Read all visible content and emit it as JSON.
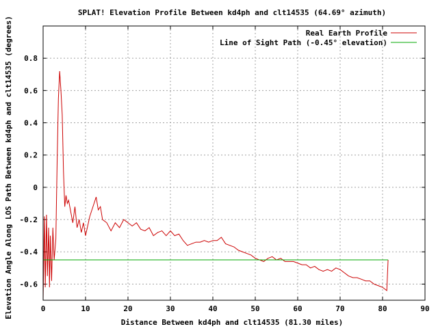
{
  "chart_data": {
    "type": "line",
    "title": "SPLAT! Elevation Profile Between kd4ph and clt14535 (64.69° azimuth)",
    "xlabel": "Distance Between kd4ph and clt14535 (81.30 miles)",
    "ylabel": "Elevation Angle Along LOS Path Between kd4ph and clt14535 (degrees)",
    "xlim": [
      0,
      90
    ],
    "ylim": [
      -0.7,
      1.0
    ],
    "x_ticks": [
      0,
      10,
      20,
      30,
      40,
      50,
      60,
      70,
      80,
      90
    ],
    "y_ticks": [
      -0.6,
      -0.4,
      -0.2,
      0,
      0.2,
      0.4,
      0.6,
      0.8
    ],
    "x_tick_labels": [
      "0",
      "10",
      "20",
      "30",
      "40",
      "50",
      "60",
      "70",
      "80",
      "90"
    ],
    "y_tick_labels": [
      "-0.6",
      "-0.4",
      "-0.2",
      "0",
      "0.2",
      "0.4",
      "0.6",
      "0.8"
    ],
    "grid": true,
    "legend_position": "top-right",
    "series": [
      {
        "name": "Real Earth Profile",
        "color": "#cc0000",
        "x": [
          0,
          0.3,
          0.5,
          0.8,
          1.0,
          1.3,
          1.5,
          1.7,
          2.0,
          2.3,
          2.6,
          3.0,
          3.3,
          3.6,
          3.9,
          4.2,
          4.5,
          4.8,
          5.1,
          5.4,
          5.7,
          6.0,
          6.5,
          7.0,
          7.5,
          8.0,
          8.5,
          9.0,
          9.5,
          10.0,
          11.0,
          12.0,
          12.5,
          13.0,
          13.5,
          14.0,
          15.0,
          16.0,
          17.0,
          18.0,
          19.0,
          20.0,
          21.0,
          22.0,
          23.0,
          24.0,
          25.0,
          26.0,
          27.0,
          28.0,
          29.0,
          30.0,
          31.0,
          32.0,
          33.0,
          34.0,
          35.0,
          36.0,
          37.0,
          38.0,
          39.0,
          40.0,
          41.0,
          42.0,
          43.0,
          44.0,
          45.0,
          46.0,
          47.0,
          48.0,
          49.0,
          50.0,
          51.0,
          52.0,
          53.0,
          54.0,
          55.0,
          56.0,
          57.0,
          58.0,
          59.0,
          60.0,
          61.0,
          62.0,
          63.0,
          64.0,
          65.0,
          66.0,
          67.0,
          68.0,
          69.0,
          70.0,
          71.0,
          72.0,
          73.0,
          74.0,
          75.0,
          76.0,
          77.0,
          78.0,
          79.0,
          80.0,
          80.5,
          81.0,
          81.3
        ],
        "y": [
          -0.7,
          -0.18,
          -0.62,
          -0.17,
          -0.55,
          -0.25,
          -0.62,
          -0.3,
          -0.58,
          -0.25,
          -0.45,
          -0.32,
          0.15,
          0.55,
          0.72,
          0.6,
          0.45,
          0.1,
          -0.12,
          -0.05,
          -0.1,
          -0.08,
          -0.15,
          -0.22,
          -0.12,
          -0.25,
          -0.2,
          -0.28,
          -0.22,
          -0.3,
          -0.18,
          -0.1,
          -0.06,
          -0.14,
          -0.12,
          -0.2,
          -0.22,
          -0.27,
          -0.22,
          -0.25,
          -0.2,
          -0.22,
          -0.24,
          -0.22,
          -0.26,
          -0.27,
          -0.25,
          -0.3,
          -0.28,
          -0.27,
          -0.3,
          -0.27,
          -0.3,
          -0.29,
          -0.33,
          -0.36,
          -0.35,
          -0.34,
          -0.34,
          -0.33,
          -0.34,
          -0.33,
          -0.33,
          -0.31,
          -0.35,
          -0.36,
          -0.37,
          -0.39,
          -0.4,
          -0.41,
          -0.42,
          -0.44,
          -0.45,
          -0.46,
          -0.44,
          -0.43,
          -0.45,
          -0.44,
          -0.46,
          -0.46,
          -0.46,
          -0.47,
          -0.48,
          -0.48,
          -0.5,
          -0.49,
          -0.51,
          -0.52,
          -0.51,
          -0.52,
          -0.5,
          -0.51,
          -0.53,
          -0.55,
          -0.56,
          -0.56,
          -0.57,
          -0.58,
          -0.58,
          -0.6,
          -0.61,
          -0.62,
          -0.63,
          -0.64,
          -0.45
        ]
      },
      {
        "name": "Line of Sight Path (-0.45° elevation)",
        "color": "#00aa00",
        "x": [
          0,
          81.3
        ],
        "y": [
          -0.45,
          -0.45
        ]
      }
    ]
  }
}
